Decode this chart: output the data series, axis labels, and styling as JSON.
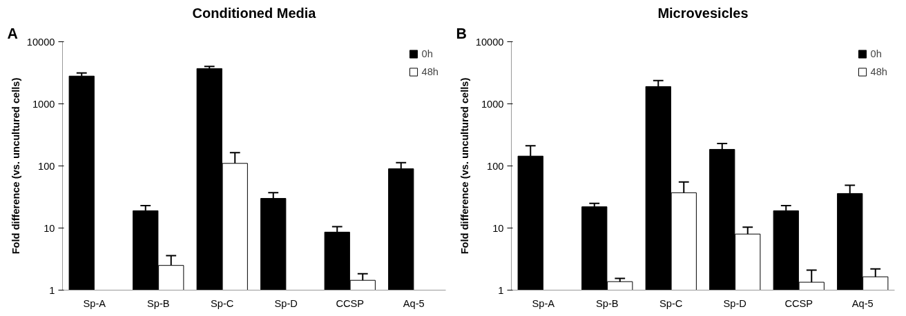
{
  "chart_data": [
    {
      "type": "bar",
      "title": "Conditioned Media",
      "ylabel": "Fold difference (vs. uncultured cells)",
      "annotations": [
        "A"
      ],
      "categories": [
        "Sp-A",
        "Sp-B",
        "Sp-C",
        "Sp-D",
        "CCSP",
        "Aq-5"
      ],
      "log": true,
      "ylim": [
        1,
        10000
      ],
      "yticks": [
        1,
        10,
        100,
        1000,
        10000
      ],
      "grid": false,
      "legend": "top right",
      "series": [
        {
          "name": "0h",
          "color": "#000000",
          "values": [
            2800,
            19,
            3700,
            30,
            8.6,
            90
          ],
          "errors": [
            [
              2800,
              3150
            ],
            [
              19,
              23
            ],
            [
              3700,
              4000
            ],
            [
              30,
              37
            ],
            [
              8.6,
              10.5
            ],
            [
              90,
              113
            ]
          ]
        },
        {
          "name": "48h",
          "color": "#ffffff",
          "values": [
            null,
            2.5,
            110,
            null,
            1.44,
            null
          ],
          "errors": [
            null,
            [
              2.5,
              3.6
            ],
            [
              110,
              164
            ],
            null,
            [
              1.44,
              1.84
            ],
            null
          ]
        }
      ]
    },
    {
      "type": "bar",
      "title": "Microvesicles",
      "ylabel": "Fold difference (vs. uncultured cells)",
      "annotations": [
        "B"
      ],
      "categories": [
        "Sp-A",
        "Sp-B",
        "Sp-C",
        "Sp-D",
        "CCSP",
        "Aq-5"
      ],
      "log": true,
      "ylim": [
        1,
        10000
      ],
      "yticks": [
        1,
        10,
        100,
        1000,
        10000
      ],
      "grid": false,
      "legend": "top right",
      "series": [
        {
          "name": "0h",
          "color": "#000000",
          "values": [
            144,
            22,
            1900,
            185,
            19,
            36
          ],
          "errors": [
            [
              144,
              212
            ],
            [
              22,
              25
            ],
            [
              1900,
              2370
            ],
            [
              185,
              230
            ],
            [
              19,
              23
            ],
            [
              36,
              49
            ]
          ]
        },
        {
          "name": "48h",
          "color": "#ffffff",
          "values": [
            null,
            1.37,
            37,
            8.0,
            1.34,
            1.64
          ],
          "errors": [
            null,
            [
              1.37,
              1.54
            ],
            [
              37,
              55
            ],
            [
              8.0,
              10.3
            ],
            [
              1.34,
              2.1
            ],
            [
              1.64,
              2.2
            ]
          ]
        }
      ]
    }
  ]
}
